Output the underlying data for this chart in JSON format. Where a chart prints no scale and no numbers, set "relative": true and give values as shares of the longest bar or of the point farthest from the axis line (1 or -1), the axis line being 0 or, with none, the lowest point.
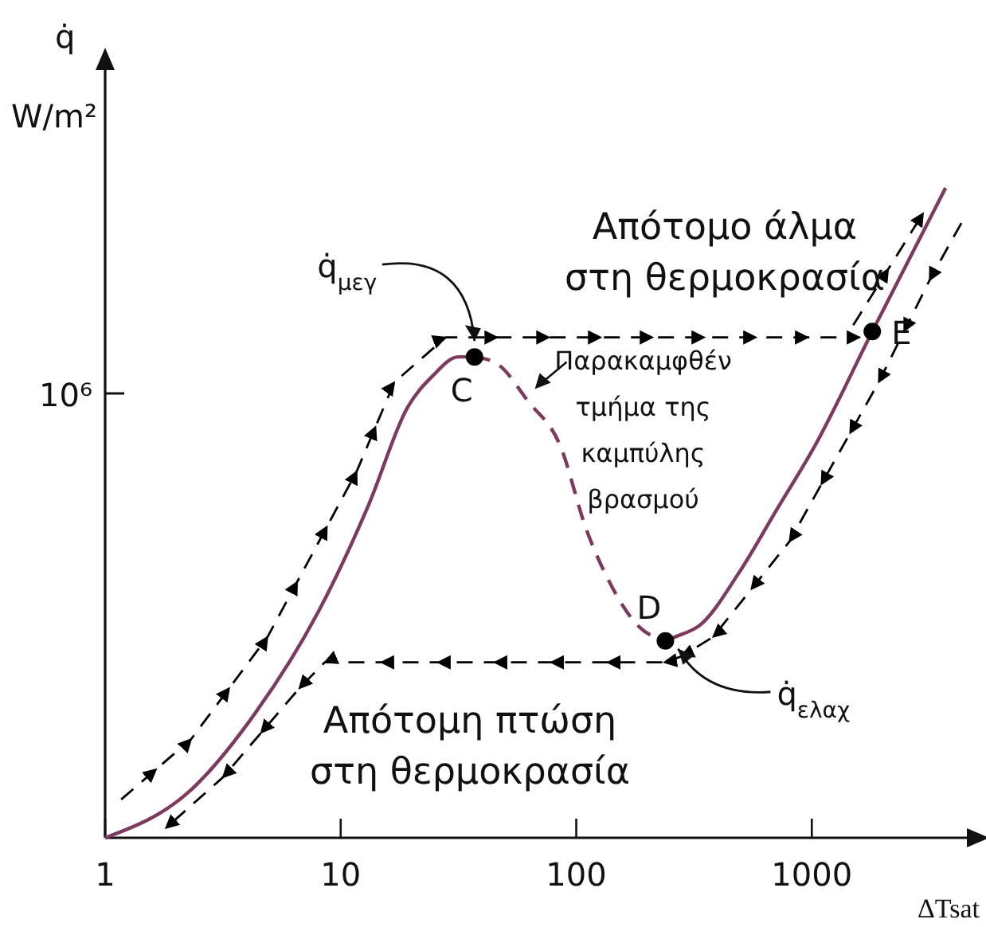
{
  "chart_data": {
    "type": "line",
    "xlabel": "ΔTsat",
    "ylabel": "q̇ W/m²",
    "log": "x",
    "relative": true,
    "xlim": [
      1,
      5000
    ],
    "xticks": [
      1,
      10,
      100,
      1000
    ],
    "grid": false,
    "series": [
      {
        "color": "#7d3a5e",
        "line_style": "solid",
        "marker": "none",
        "x": [
          1,
          2.32,
          4.32,
          8.04,
          13.2,
          19.2,
          24.6,
          31.6,
          37
        ],
        "values": [
          0,
          0.074,
          0.191,
          0.348,
          0.514,
          0.662,
          0.711,
          0.74,
          0.74
        ]
      },
      {
        "color": "#7d3a5e",
        "line_style": "dashed",
        "marker": "none",
        "x": [
          37,
          45.9,
          62.7,
          85.6,
          110,
          141,
          181,
          239
        ],
        "values": [
          0.74,
          0.73,
          0.671,
          0.603,
          0.476,
          0.388,
          0.328,
          0.303
        ]
      },
      {
        "color": "#7d3a5e",
        "line_style": "solid",
        "marker": "none",
        "x": [
          239,
          262,
          337,
          489,
          710,
          1030,
          1806,
          3697
        ],
        "values": [
          0.303,
          0.309,
          0.328,
          0.407,
          0.505,
          0.603,
          0.779,
          1
        ]
      },
      {
        "color": "#000000",
        "line_style": "dashed",
        "x": [
          1.17,
          2.32,
          4.89,
          11.7,
          16.9,
          27.9,
          1596
        ],
        "values": [
          0.059,
          0.152,
          0.309,
          0.564,
          0.701,
          0.77,
          0.77
        ]
      },
      {
        "color": "#000000",
        "line_style": "dashed",
        "x": [
          1500,
          2969
        ],
        "values": [
          0.789,
          0.961
        ]
      },
      {
        "color": "#000000",
        "line_style": "dashed",
        "x": [
          4315,
          3162,
          1923,
          1098,
          804,
          381,
          279,
          236,
          8.55,
          6.67,
          3.16,
          1.81
        ],
        "values": [
          0.946,
          0.858,
          0.701,
          0.544,
          0.456,
          0.309,
          0.279,
          0.27,
          0.27,
          0.23,
          0.093,
          0.015
        ]
      },
      {
        "type": "scatter",
        "color": "#000000",
        "marker": "circle",
        "x": [
          37,
          239,
          1806
        ],
        "values": [
          0.74,
          0.303,
          0.779
        ]
      }
    ],
    "annotations": [
      "10⁶",
      {
        "text": "C",
        "x": 37,
        "y": 0.74
      },
      {
        "text": "D",
        "x": 239,
        "y": 0.303
      },
      {
        "text": "E",
        "x": 1806,
        "y": 0.779
      },
      "q̇$_{μεγ}$",
      "q̇$_{ελαχ}$",
      {
        "text": "Παρακαμφθέν τμήμα της καμπύλης βρασμού",
        "x": 62.7,
        "y": 0.671
      },
      "Απότομο άλμα στη θερμοκρασία",
      "Απότομη πτώση στη θερμοκρασία"
    ]
  }
}
